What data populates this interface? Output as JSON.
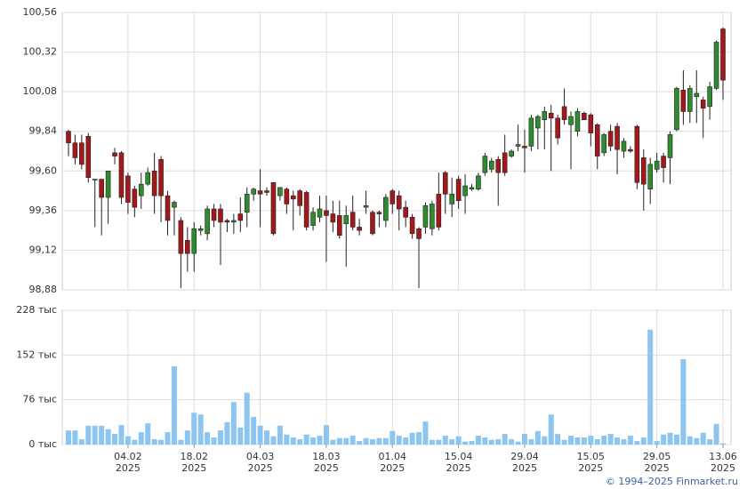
{
  "chart_data": [
    {
      "type": "candlestick",
      "color_up": "#2e8b2e",
      "color_down": "#a3181b",
      "open": [
        99.84,
        99.77,
        99.77,
        99.81,
        99.55,
        99.55,
        99.44,
        99.71,
        99.71,
        99.57,
        99.49,
        99.45,
        99.52,
        99.6,
        99.67,
        99.45,
        99.38,
        99.3,
        99.18,
        99.1,
        99.24,
        99.22,
        99.37,
        99.37,
        99.3,
        99.29,
        99.34,
        99.35,
        99.46,
        99.48,
        99.48,
        99.53,
        99.45,
        99.49,
        99.45,
        99.48,
        99.47,
        99.27,
        99.32,
        99.36,
        99.34,
        99.33,
        99.28,
        99.35,
        99.26,
        99.38,
        99.35,
        99.35,
        99.3,
        99.48,
        99.45,
        99.38,
        99.32,
        99.25,
        99.26,
        99.25,
        99.46,
        99.59,
        99.4,
        99.55,
        99.45,
        99.49,
        99.49,
        99.59,
        99.61,
        99.67,
        99.71,
        99.69,
        99.75,
        99.75,
        99.75,
        99.86,
        99.91,
        99.95,
        99.92,
        99.99,
        99.88,
        99.84,
        99.95,
        99.94,
        99.88,
        99.71,
        99.84,
        99.87,
        99.72,
        99.73,
        99.87,
        99.68,
        99.49,
        99.61,
        99.69,
        99.68,
        99.85,
        100.09,
        99.96,
        100.05,
        100.03,
        99.99,
        100.1,
        100.46
      ],
      "high": [
        99.85,
        99.82,
        99.82,
        99.83,
        99.55,
        99.55,
        99.6,
        99.74,
        99.72,
        99.59,
        99.51,
        99.59,
        99.62,
        99.71,
        99.69,
        99.48,
        99.42,
        99.32,
        99.26,
        99.29,
        99.27,
        99.39,
        99.4,
        99.4,
        99.31,
        99.34,
        99.44,
        99.5,
        99.5,
        99.61,
        99.5,
        99.53,
        99.5,
        99.5,
        99.48,
        99.49,
        99.48,
        99.38,
        99.45,
        99.45,
        99.42,
        99.42,
        99.39,
        99.45,
        99.31,
        99.48,
        99.36,
        99.36,
        99.46,
        99.49,
        99.48,
        99.42,
        99.34,
        99.26,
        99.41,
        99.42,
        99.59,
        99.6,
        99.56,
        99.57,
        99.58,
        99.52,
        99.59,
        99.71,
        99.68,
        99.69,
        99.82,
        99.73,
        99.88,
        99.85,
        99.94,
        99.94,
        99.99,
        100.0,
        99.94,
        100.1,
        99.96,
        99.98,
        99.96,
        99.95,
        99.89,
        99.83,
        99.88,
        99.89,
        99.8,
        99.75,
        99.88,
        99.73,
        99.68,
        99.71,
        99.71,
        99.84,
        100.11,
        100.21,
        100.12,
        100.21,
        100.05,
        100.14,
        100.39,
        100.47
      ],
      "low": [
        99.69,
        99.64,
        99.61,
        99.53,
        99.26,
        99.21,
        99.28,
        99.64,
        99.4,
        99.34,
        99.32,
        99.37,
        99.51,
        99.34,
        99.29,
        99.21,
        99.21,
        98.89,
        98.99,
        98.99,
        99.21,
        99.18,
        99.26,
        99.03,
        99.23,
        99.22,
        99.23,
        99.26,
        99.42,
        99.26,
        99.45,
        99.21,
        99.42,
        99.34,
        99.24,
        99.33,
        99.24,
        99.24,
        99.29,
        99.05,
        99.23,
        99.19,
        99.02,
        99.24,
        99.21,
        99.34,
        99.21,
        99.26,
        99.26,
        99.34,
        99.24,
        99.26,
        99.19,
        98.89,
        99.22,
        99.21,
        99.24,
        99.34,
        99.32,
        99.37,
        99.34,
        99.48,
        99.48,
        99.57,
        99.59,
        99.39,
        99.57,
        99.68,
        99.72,
        99.59,
        99.72,
        99.73,
        99.73,
        99.6,
        99.76,
        99.88,
        99.61,
        99.81,
        99.91,
        99.75,
        99.61,
        99.69,
        99.72,
        99.58,
        99.68,
        99.71,
        99.49,
        99.36,
        99.4,
        99.59,
        99.53,
        99.52,
        99.84,
        99.88,
        99.89,
        99.89,
        99.8,
        99.91,
        100.09,
        100.03
      ],
      "close": [
        99.77,
        99.68,
        99.64,
        99.56,
        99.55,
        99.44,
        99.6,
        99.69,
        99.44,
        99.41,
        99.38,
        99.52,
        99.59,
        99.45,
        99.45,
        99.3,
        99.41,
        99.1,
        99.1,
        99.25,
        99.25,
        99.37,
        99.3,
        99.29,
        99.29,
        99.3,
        99.3,
        99.46,
        99.49,
        99.46,
        99.47,
        99.22,
        99.5,
        99.4,
        99.43,
        99.39,
        99.26,
        99.35,
        99.37,
        99.33,
        99.29,
        99.21,
        99.33,
        99.26,
        99.24,
        99.39,
        99.22,
        99.34,
        99.44,
        99.4,
        99.37,
        99.32,
        99.22,
        99.19,
        99.39,
        99.4,
        99.26,
        99.46,
        99.46,
        99.42,
        99.51,
        99.5,
        99.57,
        99.69,
        99.66,
        99.59,
        99.59,
        99.72,
        99.76,
        99.74,
        99.92,
        99.93,
        99.96,
        99.92,
        99.8,
        99.91,
        99.93,
        99.96,
        99.91,
        99.83,
        99.69,
        99.82,
        99.75,
        99.73,
        99.78,
        99.72,
        99.53,
        99.52,
        99.64,
        99.66,
        99.62,
        99.82,
        100.1,
        99.96,
        100.1,
        100.07,
        99.98,
        100.11,
        100.38,
        100.15
      ],
      "ylim": [
        98.88,
        100.56
      ],
      "yticks": [
        {
          "value": 98.88,
          "label": "98,88"
        },
        {
          "value": 99.12,
          "label": "99,12"
        },
        {
          "value": 99.36,
          "label": "99,36"
        },
        {
          "value": 99.6,
          "label": "99,60"
        },
        {
          "value": 99.84,
          "label": "99,84"
        },
        {
          "value": 100.08,
          "label": "100,08"
        },
        {
          "value": 100.32,
          "label": "100,32"
        },
        {
          "value": 100.56,
          "label": "100,56"
        }
      ],
      "grid": true
    },
    {
      "type": "bar",
      "color": "#8cc6f0",
      "categories": [
        null,
        null,
        null,
        null,
        null,
        null,
        null,
        null,
        null,
        "04.02\n2025",
        null,
        null,
        null,
        null,
        null,
        null,
        null,
        null,
        null,
        "18.02\n2025",
        null,
        null,
        null,
        null,
        null,
        null,
        null,
        null,
        null,
        "04.03\n2025",
        null,
        null,
        null,
        null,
        null,
        null,
        null,
        null,
        null,
        "18.03\n2025",
        null,
        null,
        null,
        null,
        null,
        null,
        null,
        null,
        null,
        "01.04\n2025",
        null,
        null,
        null,
        null,
        null,
        null,
        null,
        null,
        null,
        "15.04\n2025",
        null,
        null,
        null,
        null,
        null,
        null,
        null,
        null,
        null,
        "29.04\n2025",
        null,
        null,
        null,
        null,
        null,
        null,
        null,
        null,
        null,
        "15.05\n2025",
        null,
        null,
        null,
        null,
        null,
        null,
        null,
        null,
        null,
        "29.05\n2025",
        null,
        null,
        null,
        null,
        null,
        null,
        null,
        null,
        null,
        "13.06\n2025"
      ],
      "values": [
        24,
        24,
        9,
        32,
        32,
        32,
        26,
        18,
        33,
        14,
        8,
        21,
        36,
        9,
        8,
        21,
        133,
        8,
        24,
        54,
        51,
        21,
        12,
        24,
        38,
        72,
        29,
        88,
        47,
        32,
        24,
        14,
        32,
        17,
        12,
        9,
        17,
        12,
        15,
        33,
        8,
        11,
        11,
        15,
        6,
        11,
        9,
        11,
        11,
        23,
        15,
        12,
        20,
        21,
        39,
        8,
        8,
        15,
        9,
        14,
        5,
        6,
        15,
        12,
        8,
        9,
        18,
        9,
        5,
        18,
        9,
        23,
        14,
        51,
        18,
        8,
        15,
        12,
        12,
        15,
        9,
        15,
        18,
        12,
        9,
        15,
        6,
        12,
        195,
        6,
        17,
        20,
        17,
        145,
        14,
        11,
        20,
        9,
        35,
        2
      ],
      "ylim": [
        0,
        228
      ],
      "yticks": [
        {
          "value": 0,
          "label": "0 тыс"
        },
        {
          "value": 76,
          "label": "76 тыс"
        },
        {
          "value": 152,
          "label": "152 тыс"
        },
        {
          "value": 228,
          "label": "228 тыс"
        }
      ],
      "grid": true
    }
  ],
  "footer": "© 1994–2025 Finmarket.ru"
}
